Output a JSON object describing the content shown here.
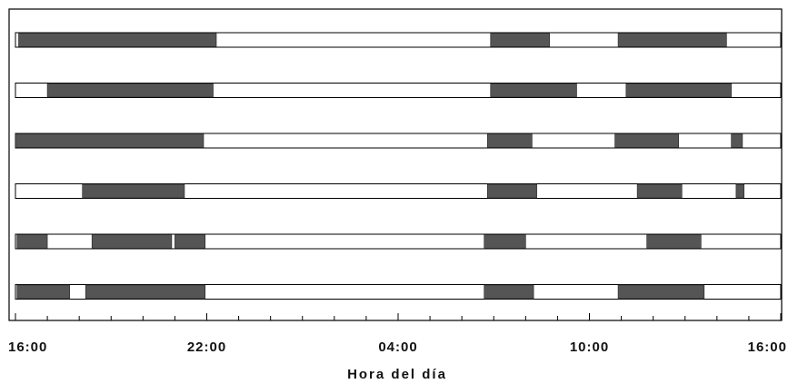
{
  "chart_data": {
    "type": "bar",
    "subtype": "activity-timeline",
    "title": "",
    "xlabel": "Hora del día",
    "ylabel": "",
    "x_range_hours": [
      0,
      24
    ],
    "x_origin_clock": "16:00",
    "tick_labels": [
      "16:00",
      "22:00",
      "04:00",
      "10:00",
      "16:00"
    ],
    "tick_label_positions_hours": [
      0,
      6,
      12,
      18,
      24
    ],
    "minor_tick_interval_hours": 1,
    "grid": false,
    "legend": "none",
    "colors": {
      "active": "#555555",
      "inactive": "#ffffff",
      "outline": "#000000"
    },
    "rows": [
      {
        "segments": [
          [
            0.1,
            6.3
          ],
          [
            14.9,
            16.75
          ],
          [
            18.9,
            22.3
          ]
        ]
      },
      {
        "segments": [
          [
            1.0,
            6.2
          ],
          [
            14.9,
            17.6
          ],
          [
            19.15,
            22.45
          ]
        ]
      },
      {
        "segments": [
          [
            0.0,
            5.9
          ],
          [
            14.8,
            16.2
          ],
          [
            18.8,
            20.8
          ],
          [
            22.45,
            22.8
          ]
        ]
      },
      {
        "segments": [
          [
            2.1,
            5.3
          ],
          [
            14.8,
            16.35
          ],
          [
            19.5,
            20.9
          ],
          [
            22.6,
            22.85
          ]
        ]
      },
      {
        "segments": [
          [
            0.05,
            1.0
          ],
          [
            2.4,
            4.9
          ],
          [
            5.0,
            5.95
          ],
          [
            14.7,
            16.0
          ],
          [
            19.8,
            21.5
          ]
        ]
      },
      {
        "segments": [
          [
            0.05,
            1.7
          ],
          [
            2.2,
            5.95
          ],
          [
            14.7,
            16.25
          ],
          [
            18.9,
            21.6
          ]
        ]
      }
    ]
  }
}
